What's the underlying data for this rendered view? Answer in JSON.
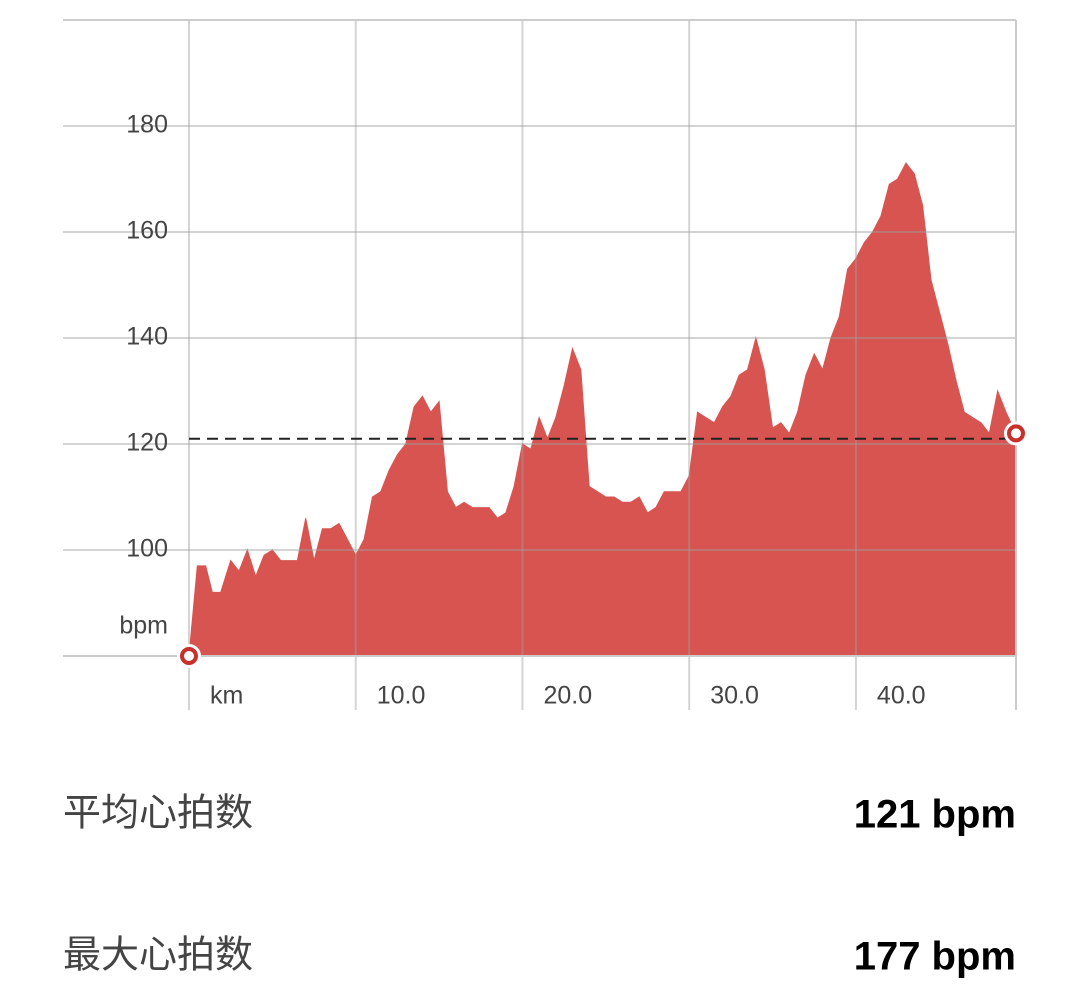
{
  "chart_data": {
    "type": "area",
    "color": "#d75450",
    "x": [
      0,
      0.5,
      1.0,
      1.4,
      1.9,
      2.5,
      3.0,
      3.5,
      4.0,
      4.5,
      5.0,
      5.5,
      6.5,
      7.0,
      7.5,
      8.0,
      8.5,
      9.0,
      9.5,
      10.0,
      10.5,
      11.0,
      11.5,
      12.0,
      12.5,
      13.0,
      13.5,
      14.0,
      14.5,
      15.0,
      15.5,
      16.0,
      16.5,
      17.0,
      18.0,
      18.5,
      19.0,
      19.5,
      20.0,
      20.5,
      21.0,
      21.5,
      22.0,
      22.5,
      23.0,
      23.5,
      24.0,
      24.5,
      25.0,
      25.5,
      26.0,
      26.5,
      27.0,
      27.5,
      28.0,
      28.5,
      29.5,
      30.0,
      30.5,
      31.0,
      31.5,
      32.0,
      32.5,
      33.0,
      33.5,
      34.0,
      34.5,
      35.0,
      35.5,
      36.0,
      36.5,
      37.0,
      37.5,
      38.0,
      38.5,
      39.0,
      39.5,
      40.0,
      40.5,
      41.0,
      41.5,
      42.0,
      42.5,
      43.0,
      43.5,
      44.0,
      44.5,
      45.0,
      45.5,
      46.0,
      46.5,
      47.0,
      47.5,
      48.0,
      48.5,
      49.0,
      49.6
    ],
    "values": [
      80,
      97,
      97,
      92,
      92,
      98,
      96,
      100,
      95,
      99,
      100,
      98,
      98,
      106,
      98,
      104,
      104,
      105,
      102,
      99,
      102,
      110,
      111,
      115,
      118,
      120,
      127,
      129,
      126,
      128,
      111,
      108,
      109,
      108,
      108,
      106,
      107,
      112,
      120,
      119,
      125,
      121,
      125,
      131,
      138,
      134,
      112,
      111,
      110,
      110,
      109,
      109,
      110,
      107,
      108,
      111,
      111,
      114,
      126,
      125,
      124,
      127,
      129,
      133,
      134,
      140,
      134,
      123,
      124,
      122,
      126,
      133,
      137,
      134,
      140,
      144,
      153,
      155,
      158,
      160,
      163,
      169,
      170,
      173,
      171,
      165,
      151,
      145,
      139,
      132,
      126,
      125,
      124,
      122,
      130,
      126,
      122
    ],
    "average": 121,
    "xlim": [
      0,
      49.6
    ],
    "xticks": [
      {
        "value": 0,
        "label": "km"
      },
      {
        "value": 10,
        "label": "10.0"
      },
      {
        "value": 20,
        "label": "20.0"
      },
      {
        "value": 30,
        "label": "30.0"
      },
      {
        "value": 40,
        "label": "40.0"
      }
    ],
    "ylim": [
      80,
      200
    ],
    "yticks": [
      100,
      120,
      140,
      160,
      180
    ],
    "y_label": "bpm",
    "grid": true
  },
  "stats": [
    {
      "label": "平均心拍数",
      "value": "121 bpm"
    },
    {
      "label": "最大心拍数",
      "value": "177 bpm"
    }
  ]
}
